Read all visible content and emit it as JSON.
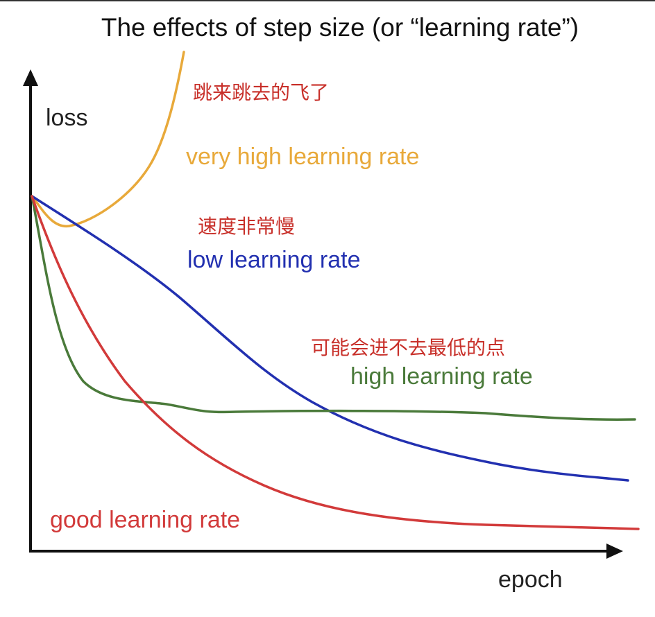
{
  "title": "The effects of step size (or “learning rate”)",
  "axes": {
    "y_label": "loss",
    "x_label": "epoch"
  },
  "annotations": {
    "very_high": {
      "label": "very high learning rate",
      "note": "跳来跳去的飞了"
    },
    "low": {
      "label": "low learning rate",
      "note": "速度非常慢"
    },
    "high": {
      "label": "high learning rate",
      "note": "可能会进不去最低的点"
    },
    "good": {
      "label": "good learning rate"
    }
  }
}
